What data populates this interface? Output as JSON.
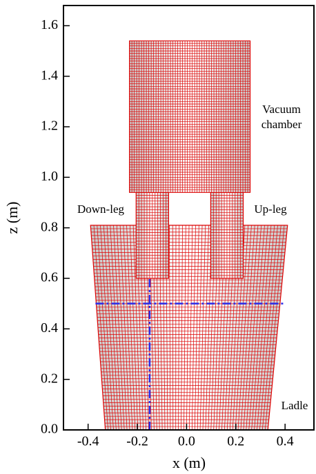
{
  "chart_data": {
    "type": "mesh",
    "xlabel": "x (m)",
    "ylabel": "z (m)",
    "xlim": [
      -0.5,
      0.52
    ],
    "ylim": [
      0,
      1.68
    ],
    "xticks": [
      -0.4,
      -0.2,
      {
        "value": 0,
        "label": "0.0"
      },
      0.2,
      0.4
    ],
    "yticks": [
      {
        "value": 0,
        "label": "0.0"
      },
      0.2,
      0.4,
      0.6,
      0.8,
      {
        "value": 1,
        "label": "1.0"
      },
      1.2,
      1.4,
      1.6
    ],
    "mesh_color": "#dd0000",
    "regions": [
      {
        "x": [
          -0.33,
          0.33,
          0.41,
          -0.39
        ],
        "z": [
          0,
          0,
          0.81,
          0.81
        ]
      },
      {
        "x": [
          -0.205,
          -0.073,
          -0.073,
          -0.205
        ],
        "z": [
          0.6,
          0.6,
          0.94,
          0.94
        ]
      },
      {
        "x": [
          0.098,
          0.23,
          0.23,
          0.098
        ],
        "z": [
          0.6,
          0.6,
          0.94,
          0.94
        ]
      },
      {
        "x": [
          -0.232,
          0.258,
          0.258,
          -0.232
        ],
        "z": [
          0.94,
          0.94,
          1.54,
          1.54
        ]
      }
    ],
    "lines": [
      {
        "color": "#2a2ae8",
        "x": [
          -0.15,
          -0.15
        ],
        "z": [
          0,
          0.6
        ]
      },
      {
        "color": "#2a2ae8",
        "x": [
          -0.37,
          0.4
        ],
        "z": [
          0.5,
          0.5
        ]
      }
    ],
    "annotations": [
      "Vacuum",
      "chamber",
      "Down-leg",
      "Up-leg",
      "Ladle"
    ]
  }
}
